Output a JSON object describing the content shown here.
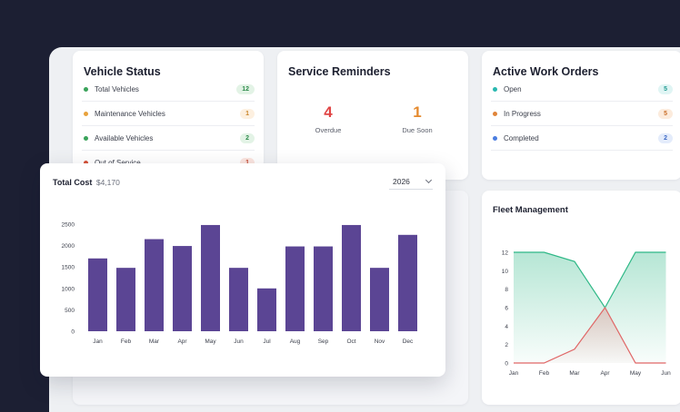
{
  "vehicle_status": {
    "title": "Vehicle Status",
    "items": [
      {
        "label": "Total Vehicles",
        "count": "12",
        "dot": "#3aa35a",
        "badge_bg": "#e3f3e6",
        "badge_fg": "#2d8a4b"
      },
      {
        "label": "Maintenance Vehicles",
        "count": "1",
        "dot": "#e8a23c",
        "badge_bg": "#fdf0e0",
        "badge_fg": "#c98428"
      },
      {
        "label": "Available Vehicles",
        "count": "2",
        "dot": "#3aa35a",
        "badge_bg": "#e3f3e6",
        "badge_fg": "#2d8a4b"
      },
      {
        "label": "Out of Service",
        "count": "1",
        "dot": "#d6533a",
        "badge_bg": "#fbe5df",
        "badge_fg": "#c2462f"
      }
    ]
  },
  "service_reminders": {
    "title": "Service Reminders",
    "overdue": {
      "value": "4",
      "label": "Overdue",
      "color": "#e04545"
    },
    "due_soon": {
      "value": "1",
      "label": "Due Soon",
      "color": "#e58a2e"
    }
  },
  "work_orders": {
    "title": "Active Work Orders",
    "items": [
      {
        "label": "Open",
        "count": "5",
        "dot": "#29b8b0",
        "badge_bg": "#e0f5f4",
        "badge_fg": "#1f9990"
      },
      {
        "label": "In Progress",
        "count": "5",
        "dot": "#e0843a",
        "badge_bg": "#fcebdc",
        "badge_fg": "#c86c25"
      },
      {
        "label": "Completed",
        "count": "2",
        "dot": "#4a7de0",
        "badge_bg": "#e4ecfb",
        "badge_fg": "#3a67c4"
      }
    ]
  },
  "total_cost": {
    "title": "Total Cost",
    "amount": "$4,170",
    "year": "2026"
  },
  "fleet": {
    "title": "Fleet Management"
  },
  "chart_data": [
    {
      "type": "bar",
      "title": "Total Cost",
      "categories": [
        "Jan",
        "Feb",
        "Mar",
        "Apr",
        "May",
        "Jun",
        "Jul",
        "Aug",
        "Sep",
        "Oct",
        "Nov",
        "Dec"
      ],
      "values": [
        1700,
        1480,
        2150,
        1990,
        2480,
        1480,
        1000,
        1980,
        1980,
        2480,
        1480,
        2250
      ],
      "yticks": [
        "0",
        "500",
        "1000",
        "1500",
        "2000",
        "2500"
      ],
      "ylim": [
        0,
        2500
      ],
      "color": "#5b4594"
    },
    {
      "type": "area",
      "title": "Fleet Management",
      "categories": [
        "Jan",
        "Feb",
        "Mar",
        "Apr",
        "May",
        "Jun"
      ],
      "series": [
        {
          "values": [
            12,
            12,
            11,
            6,
            12,
            12
          ],
          "color": "#2eb886"
        },
        {
          "values": [
            0,
            0,
            1.5,
            6,
            0,
            0
          ],
          "color": "#e06666"
        }
      ],
      "yticks": [
        "0",
        "2",
        "4",
        "6",
        "8",
        "10",
        "12"
      ],
      "ylim": [
        0,
        12
      ]
    }
  ]
}
